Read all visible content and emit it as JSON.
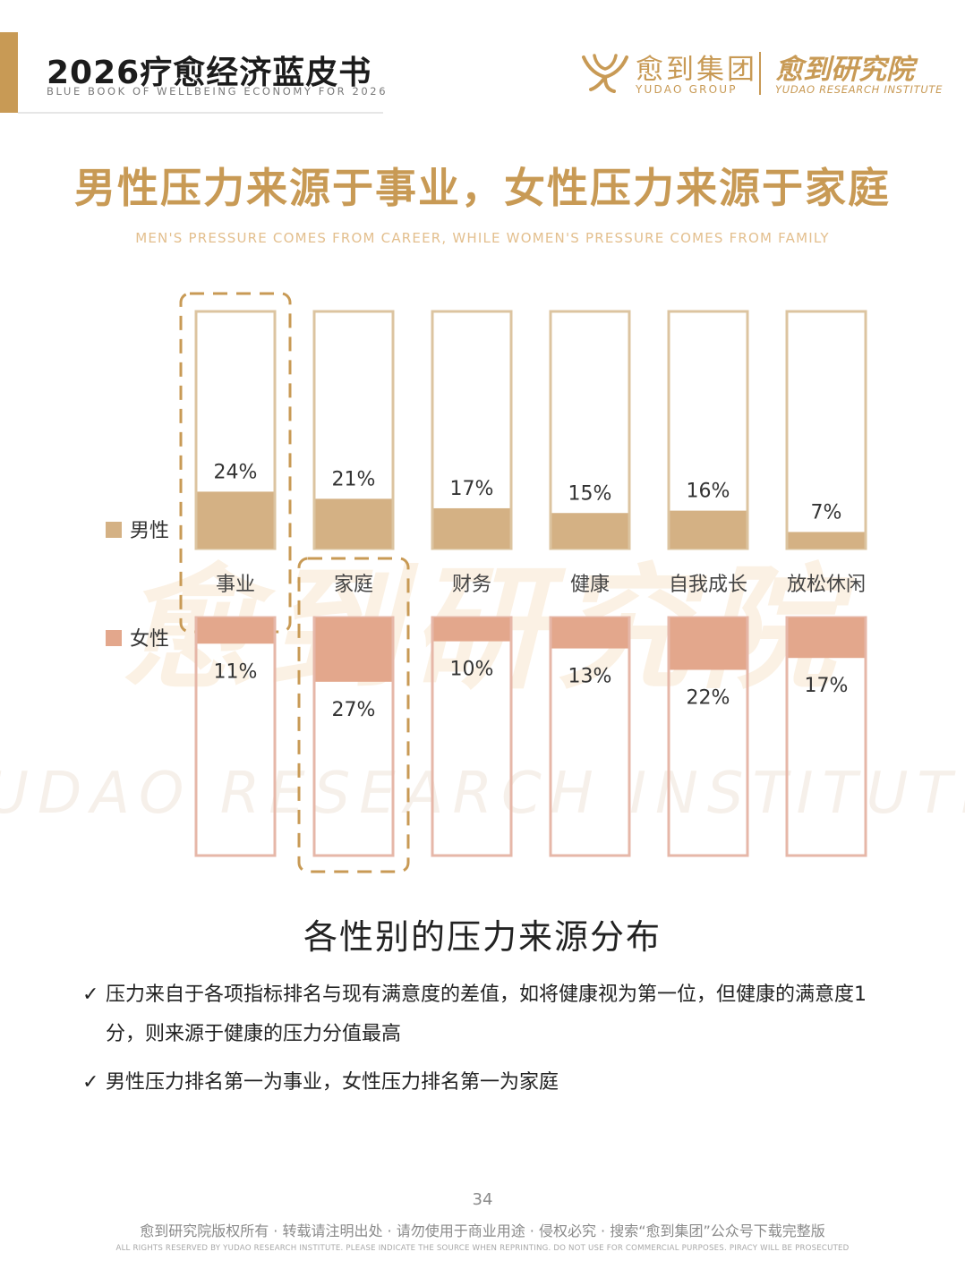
{
  "header": {
    "title": "2026疗愈经济蓝皮书",
    "subtitle": "BLUE BOOK OF WELLBEING ECONOMY FOR 2026",
    "brand_cn": "愈到集团",
    "brand_en": "YUDAO GROUP",
    "institute_cn": "愈到研究院",
    "institute_en": "YUDAO RESEARCH INSTITUTE",
    "brand_icon": "yudao-y-logo-icon"
  },
  "page_title": "男性压力来源于事业，女性压力来源于家庭",
  "page_subtitle": "MEN'S PRESSURE COMES FROM CAREER, WHILE WOMEN'S PRESSURE COMES FROM FAMILY",
  "watermark": {
    "cn": "愈到研究院",
    "en": "YUDAO RESEARCH INSTITUTE"
  },
  "chart_data": {
    "type": "bar",
    "title": "各性别的压力来源分布",
    "categories": [
      "事业",
      "家庭",
      "财务",
      "健康",
      "自我成长",
      "放松休闲"
    ],
    "series": [
      {
        "name": "男性",
        "values": [
          24,
          21,
          17,
          15,
          16,
          7
        ],
        "labels": [
          "24%",
          "21%",
          "17%",
          "15%",
          "16%",
          "7%"
        ],
        "color": "#d4b184",
        "direction": "up"
      },
      {
        "name": "女性",
        "values": [
          11,
          27,
          10,
          13,
          22,
          17
        ],
        "labels": [
          "11%",
          "27%",
          "10%",
          "13%",
          "22%",
          "17%"
        ],
        "color": "#e3a78c",
        "direction": "down"
      }
    ],
    "ylim": [
      0,
      100
    ],
    "unit": "%",
    "legend_position": "left",
    "highlighted": [
      {
        "series": "男性",
        "category": "事业"
      },
      {
        "series": "女性",
        "category": "家庭"
      }
    ],
    "colors": {
      "male_outline": "#dcc4a0",
      "female_outline": "#e6b7a8",
      "highlight_dash": "#c89a55"
    }
  },
  "notes": [
    "压力来自于各项指标排名与现有满意度的差值，如将健康视为第一位，但健康的满意度1分，则来源于健康的压力分值最高",
    "男性压力排名第一为事业，女性压力排名第一为家庭"
  ],
  "note_icon": "check-mark-icon",
  "note_check": "✓",
  "footer": {
    "page_number": "34",
    "copyright_cn": "愈到研究院版权所有 · 转载请注明出处 · 请勿使用于商业用途 · 侵权必究 · 搜索“愈到集团”公众号下载完整版",
    "copyright_en": "ALL RIGHTS RESERVED BY YUDAO RESEARCH INSTITUTE. PLEASE INDICATE THE SOURCE WHEN REPRINTING. DO NOT USE FOR COMMERCIAL PURPOSES. PIRACY WILL BE PROSECUTED"
  }
}
